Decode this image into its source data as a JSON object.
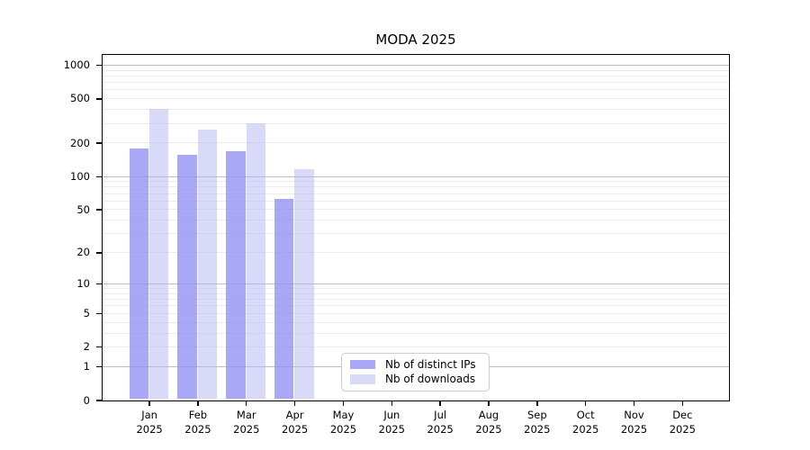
{
  "figure": {
    "title": "MODA 2025"
  },
  "chart_data": {
    "type": "bar",
    "title": "MODA 2025",
    "categories": [
      "Jan 2025",
      "Feb 2025",
      "Mar 2025",
      "Apr 2025",
      "May 2025",
      "Jun 2025",
      "Jul 2025",
      "Aug 2025",
      "Sep 2025",
      "Oct 2025",
      "Nov 2025",
      "Dec 2025"
    ],
    "series": [
      {
        "name": "Nb of distinct IPs",
        "color": "rgba(146,146,244,0.8)",
        "values": [
          177,
          156,
          167,
          62,
          null,
          null,
          null,
          null,
          null,
          null,
          null,
          null
        ]
      },
      {
        "name": "Nb of downloads",
        "color": "rgba(179,179,241,0.5)",
        "values": [
          405,
          263,
          297,
          116,
          null,
          null,
          null,
          null,
          null,
          null,
          null,
          null
        ]
      }
    ],
    "xlabel": "",
    "ylabel": "",
    "yscale": "symlog",
    "yticks": [
      0,
      1,
      2,
      5,
      10,
      20,
      50,
      100,
      200,
      500,
      1000
    ],
    "ylim": [
      0,
      1265
    ],
    "grid": "horizontal major (decades, darker) + minor (lighter)",
    "legend_position": "lower center inside axes"
  }
}
